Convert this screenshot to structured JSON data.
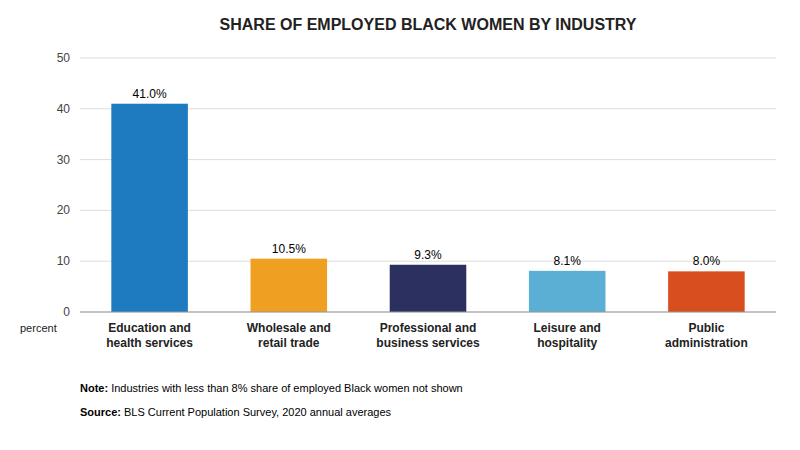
{
  "chart_data": {
    "type": "bar",
    "title": "SHARE OF EMPLOYED BLACK WOMEN BY INDUSTRY",
    "categories": [
      "Education and\nhealth services",
      "Wholesale and\nretail trade",
      "Professional and\nbusiness services",
      "Leisure and\nhospitality",
      "Public\nadministration"
    ],
    "values": [
      41.0,
      10.5,
      9.3,
      8.1,
      8.0
    ],
    "value_labels": [
      "41.0%",
      "10.5%",
      "9.3%",
      "8.1%",
      "8.0%"
    ],
    "colors": [
      "#1f7bbf",
      "#f0a020",
      "#2b3060",
      "#5baed4",
      "#d94e1f"
    ],
    "ylim": [
      0,
      50
    ],
    "yticks": [
      0,
      10,
      20,
      30,
      40,
      50
    ],
    "ylabel": "percent",
    "notes": [
      "Note: Industries with less than 8% share of employed Black women not shown",
      "Source: BLS Current Population Survey, 2020 annual averages"
    ],
    "grid": true,
    "data_labels": true
  }
}
